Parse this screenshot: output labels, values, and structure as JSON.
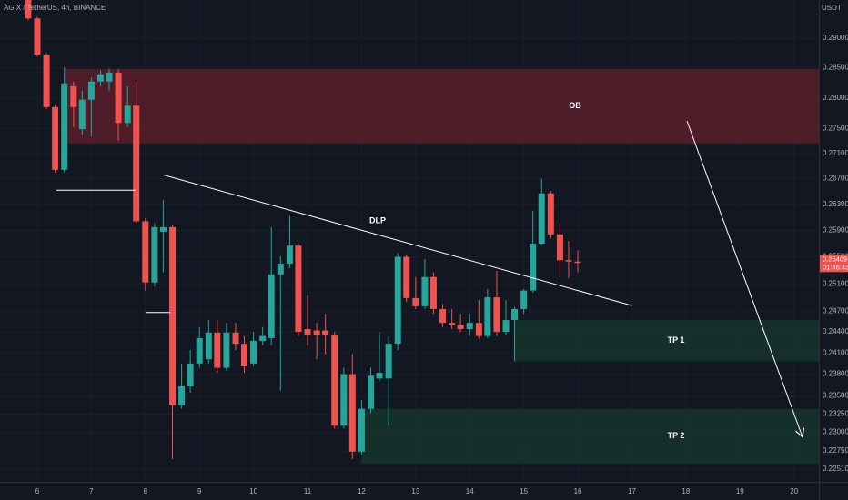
{
  "chart_data": {
    "type": "candlestick",
    "symbol_info": "AGIX / TetherUS, 4h, BINANCE",
    "quote_unit": "USDT",
    "log_scale": true,
    "grid": true,
    "up_color": "#26a69a",
    "down_color": "#ef5350",
    "x": [
      5.83,
      6,
      6.17,
      6.33,
      6.5,
      6.67,
      6.83,
      7,
      7.17,
      7.33,
      7.5,
      7.67,
      7.83,
      8,
      8.17,
      8.33,
      8.5,
      8.67,
      8.83,
      9,
      9.17,
      9.33,
      9.5,
      9.67,
      9.83,
      10,
      10.17,
      10.33,
      10.5,
      10.67,
      10.83,
      11,
      11.17,
      11.33,
      11.5,
      11.67,
      11.83,
      12,
      12.17,
      12.33,
      12.5,
      12.67,
      12.83,
      13,
      13.17,
      13.33,
      13.5,
      13.67,
      13.83,
      14,
      14.17,
      14.33,
      14.5,
      14.67,
      14.83,
      15,
      15.17,
      15.33,
      15.5,
      15.67,
      15.83,
      16
    ],
    "open": [
      0.2966,
      0.2934,
      0.2872,
      0.2785,
      0.2684,
      0.2819,
      0.2749,
      0.2797,
      0.2827,
      0.2827,
      0.2842,
      0.2759,
      0.2787,
      0.2604,
      0.2512,
      0.2588,
      0.2595,
      0.2337,
      0.2363,
      0.2395,
      0.2401,
      0.2439,
      0.2389,
      0.2439,
      0.2423,
      0.2395,
      0.2427,
      0.2431,
      0.2524,
      0.254,
      0.2567,
      0.2444,
      0.2442,
      0.2442,
      0.2436,
      0.2309,
      0.238,
      0.2274,
      0.2332,
      0.2374,
      0.2374,
      0.2423,
      0.255,
      0.2489,
      0.2477,
      0.252,
      0.2473,
      0.2453,
      0.245,
      0.2444,
      0.2453,
      0.2434,
      0.249,
      0.244,
      0.2457,
      0.2473,
      0.25,
      0.257,
      0.2647,
      0.2584,
      0.2545,
      0.2543
    ],
    "high": [
      0.2966,
      0.2937,
      0.2875,
      0.2789,
      0.2851,
      0.2827,
      0.2812,
      0.2834,
      0.2845,
      0.2849,
      0.2848,
      0.2819,
      0.2827,
      0.2609,
      0.2601,
      0.2637,
      0.2598,
      0.2395,
      0.2414,
      0.2447,
      0.2457,
      0.2457,
      0.2453,
      0.2453,
      0.2434,
      0.244,
      0.2447,
      0.2595,
      0.2551,
      0.2612,
      0.257,
      0.2493,
      0.2453,
      0.2466,
      0.244,
      0.2389,
      0.2408,
      0.2344,
      0.2389,
      0.244,
      0.2434,
      0.2556,
      0.2554,
      0.252,
      0.2547,
      0.2527,
      0.248,
      0.2473,
      0.2466,
      0.2466,
      0.2486,
      0.2502,
      0.2529,
      0.2486,
      0.2476,
      0.2502,
      0.262,
      0.267,
      0.2651,
      0.2601,
      0.2574,
      0.256
    ],
    "low": [
      0.2931,
      0.2869,
      0.2782,
      0.268,
      0.268,
      0.2752,
      0.274,
      0.2737,
      0.2819,
      0.2812,
      0.273,
      0.2752,
      0.2601,
      0.25,
      0.2506,
      0.2527,
      0.2264,
      0.2332,
      0.2354,
      0.2389,
      0.2395,
      0.2382,
      0.2385,
      0.2414,
      0.2382,
      0.2391,
      0.2421,
      0.2421,
      0.2357,
      0.2533,
      0.2434,
      0.2421,
      0.2401,
      0.2408,
      0.2305,
      0.2305,
      0.2264,
      0.227,
      0.2326,
      0.237,
      0.2309,
      0.2414,
      0.2483,
      0.2473,
      0.2473,
      0.2466,
      0.2447,
      0.2444,
      0.244,
      0.2434,
      0.243,
      0.2431,
      0.2434,
      0.2436,
      0.2398,
      0.2466,
      0.2497,
      0.2567,
      0.2578,
      0.252,
      0.2518,
      0.2527
    ],
    "close": [
      0.2934,
      0.2872,
      0.2785,
      0.2684,
      0.2824,
      0.2785,
      0.2797,
      0.2827,
      0.2839,
      0.2842,
      0.2759,
      0.2787,
      0.2604,
      0.2512,
      0.2595,
      0.2595,
      0.2337,
      0.2363,
      0.2395,
      0.2431,
      0.2439,
      0.2389,
      0.2439,
      0.2423,
      0.2391,
      0.2427,
      0.2434,
      0.2524,
      0.254,
      0.2567,
      0.244,
      0.2436,
      0.2436,
      0.2436,
      0.2309,
      0.238,
      0.2274,
      0.2332,
      0.2378,
      0.2382,
      0.2423,
      0.255,
      0.2489,
      0.2477,
      0.252,
      0.2473,
      0.2453,
      0.245,
      0.2444,
      0.2453,
      0.2434,
      0.249,
      0.244,
      0.2457,
      0.2473,
      0.25,
      0.257,
      0.2647,
      0.2584,
      0.2545,
      0.2543,
      0.2541
    ],
    "xlim": [
      5.31,
      20.46
    ],
    "xticks": [
      6,
      7,
      8,
      9,
      10,
      11,
      12,
      13,
      14,
      15,
      16,
      17,
      18,
      19,
      20
    ],
    "ylim": [
      0.2234,
      0.2966
    ],
    "yticks": [
      {
        "value": 0.29,
        "label": "0.29000"
      },
      {
        "value": 0.285,
        "label": "0.28500"
      },
      {
        "value": 0.28,
        "label": "0.28000"
      },
      {
        "value": 0.275,
        "label": "0.27500"
      },
      {
        "value": 0.271,
        "label": "0.27100"
      },
      {
        "value": 0.267,
        "label": "0.26700"
      },
      {
        "value": 0.263,
        "label": "0.26300"
      },
      {
        "value": 0.259,
        "label": "0.25900"
      },
      {
        "value": 0.255,
        "label": "0.25500"
      },
      {
        "value": 0.251,
        "label": "0.25100"
      },
      {
        "value": 0.247,
        "label": "0.24700"
      },
      {
        "value": 0.244,
        "label": "0.24400"
      },
      {
        "value": 0.241,
        "label": "0.24100"
      },
      {
        "value": 0.238,
        "label": "0.23800"
      },
      {
        "value": 0.235,
        "label": "0.23500"
      },
      {
        "value": 0.2325,
        "label": "0.23250"
      },
      {
        "value": 0.23,
        "label": "0.23000"
      },
      {
        "value": 0.2275,
        "label": "0.22750"
      },
      {
        "value": 0.2251,
        "label": "0.22510"
      }
    ],
    "current_price": 0.25409,
    "countdown": "01:46:43",
    "zones": [
      {
        "label": "OB",
        "start": 6.5,
        "top": 0.2848,
        "bottom": 0.2726,
        "color": "#5a1f2a"
      },
      {
        "label": "TP 1",
        "start": 14.83,
        "top": 0.2457,
        "bottom": 0.2398,
        "color": "#16352b"
      },
      {
        "label": "TP 2",
        "start": 12,
        "top": 0.2332,
        "bottom": 0.2258,
        "color": "#16352b"
      }
    ],
    "trendline": {
      "label": "DLP",
      "x": [
        8.33,
        17
      ],
      "y": [
        0.2676,
        0.2478
      ]
    },
    "levels": [
      {
        "x": [
          6.35,
          7.83
        ],
        "y": [
          0.2652,
          0.2652
        ]
      },
      {
        "x": [
          8,
          8.46
        ],
        "y": [
          0.2468,
          0.2468
        ]
      }
    ],
    "arrow": {
      "x": [
        18.02,
        20.15
      ],
      "y": [
        0.2762,
        0.2295
      ]
    }
  }
}
